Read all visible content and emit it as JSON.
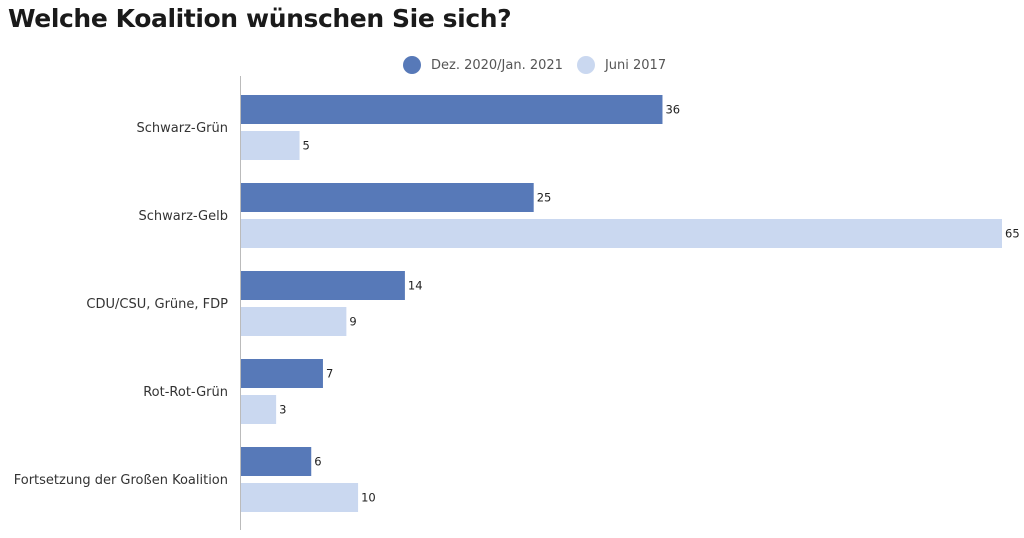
{
  "chart_data": {
    "type": "bar",
    "orientation": "horizontal",
    "title": "Welche Koalition wünschen Sie sich?",
    "categories": [
      "Schwarz-Grün",
      "Schwarz-Gelb",
      "CDU/CSU, Grüne, FDP",
      "Rot-Rot-Grün",
      "Fortsetzung der Großen Koalition"
    ],
    "series": [
      {
        "name": "Dez. 2020/Jan. 2021",
        "color": "#5779b8",
        "values": [
          36,
          25,
          14,
          7,
          6
        ]
      },
      {
        "name": "Juni 2017",
        "color": "#cad8f0",
        "values": [
          5,
          65,
          9,
          3,
          10
        ]
      }
    ],
    "xlim": [
      0,
      65
    ],
    "grid": false,
    "legend_position": "top"
  }
}
